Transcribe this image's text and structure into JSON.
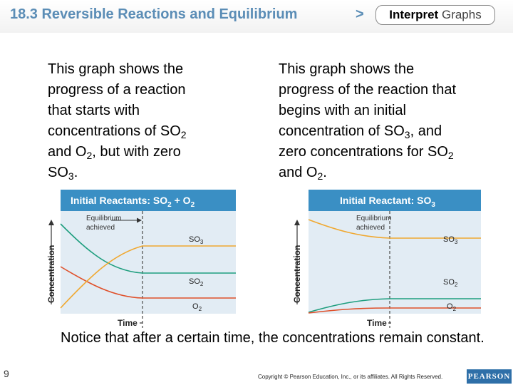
{
  "header": {
    "title": "18.3 Reversible Reactions and Equilibrium",
    "arrow": ">",
    "tab_word1": "Interpret",
    "tab_word2": "Graphs"
  },
  "left_text": {
    "l1": "This graph shows the",
    "l2": "progress of a reaction",
    "l3": "that starts with",
    "l4a": "concentrations of SO",
    "l4sub": "2",
    "l5a": "and O",
    "l5sub": "2",
    "l5b": ", but with zero",
    "l6a": "SO",
    "l6sub": "3",
    "l6b": "."
  },
  "right_text": {
    "l1": "This graph shows the",
    "l2": "progress of the reaction that",
    "l3": "begins with an initial",
    "l4a": "concentration of SO",
    "l4sub": "3",
    "l4b": ", and",
    "l5a": "zero concentrations for SO",
    "l5sub": "2",
    "l6a": "and O",
    "l6sub": "2",
    "l6b": "."
  },
  "charts": [
    {
      "title_main": "Initial Reactants: SO",
      "title_sub1": "2",
      "title_mid": " + O",
      "title_sub2": "2",
      "xlabel": "Time",
      "ylabel": "Concentration",
      "annotation_1": "Equilibrium",
      "annotation_2": "achieved",
      "labels": [
        {
          "base": "SO",
          "sub": "3"
        },
        {
          "base": "SO",
          "sub": "2"
        },
        {
          "base": "O",
          "sub": "2"
        }
      ]
    },
    {
      "title_main": "Initial Reactant: SO",
      "title_sub1": "3",
      "title_mid": "",
      "title_sub2": "",
      "xlabel": "Time",
      "ylabel": "Concentration",
      "annotation_1": "Equilibrium",
      "annotation_2": "achieved",
      "labels": [
        {
          "base": "SO",
          "sub": "3"
        },
        {
          "base": "SO",
          "sub": "2"
        },
        {
          "base": "O",
          "sub": "2"
        }
      ]
    }
  ],
  "colors": {
    "title_bar": "#3a8fc4",
    "plot_bg": "#e2ecf4",
    "so3": "#f0a830",
    "so2": "#1e9e7e",
    "o2": "#e0502a"
  },
  "notice": "Notice that after a certain time, the concentrations remain constant.",
  "page_number": "9",
  "copyright": "Copyright © Pearson Education, Inc., or its affiliates. All Rights Reserved.",
  "logo": "PEARSON"
}
